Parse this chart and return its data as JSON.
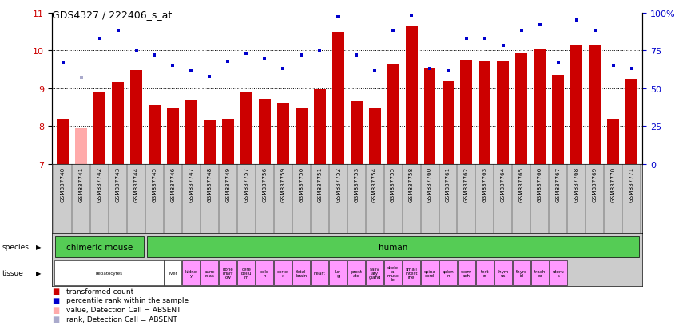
{
  "title": "GDS4327 / 222406_s_at",
  "samples": [
    "GSM837740",
    "GSM837741",
    "GSM837742",
    "GSM837743",
    "GSM837744",
    "GSM837745",
    "GSM837746",
    "GSM837747",
    "GSM837748",
    "GSM837749",
    "GSM837757",
    "GSM837756",
    "GSM837759",
    "GSM837750",
    "GSM837751",
    "GSM837752",
    "GSM837753",
    "GSM837754",
    "GSM837755",
    "GSM837758",
    "GSM837760",
    "GSM837761",
    "GSM837762",
    "GSM837763",
    "GSM837764",
    "GSM837765",
    "GSM837766",
    "GSM837767",
    "GSM837768",
    "GSM837769",
    "GSM837770",
    "GSM837771"
  ],
  "bar_values": [
    8.18,
    7.95,
    8.88,
    9.17,
    9.47,
    8.55,
    8.47,
    8.68,
    8.15,
    8.18,
    8.88,
    8.72,
    8.62,
    8.47,
    8.98,
    10.48,
    8.65,
    8.48,
    9.65,
    10.63,
    9.55,
    9.18,
    9.76,
    9.72,
    9.72,
    9.95,
    10.02,
    9.35,
    10.12,
    10.12,
    8.18,
    9.25
  ],
  "rank_values_pct": [
    67,
    57,
    83,
    88,
    75,
    72,
    65,
    62,
    58,
    68,
    73,
    70,
    63,
    72,
    75,
    97,
    72,
    62,
    88,
    98,
    63,
    62,
    83,
    83,
    78,
    88,
    92,
    67,
    95,
    88,
    65,
    63
  ],
  "absent_bar": [
    false,
    true,
    false,
    false,
    false,
    false,
    false,
    false,
    false,
    false,
    false,
    false,
    false,
    false,
    false,
    false,
    false,
    false,
    false,
    false,
    false,
    false,
    false,
    false,
    false,
    false,
    false,
    false,
    false,
    false,
    false,
    false
  ],
  "absent_rank": [
    false,
    true,
    false,
    false,
    false,
    false,
    false,
    false,
    false,
    false,
    false,
    false,
    false,
    false,
    false,
    false,
    false,
    false,
    false,
    false,
    false,
    false,
    false,
    false,
    false,
    false,
    false,
    false,
    false,
    false,
    false,
    false
  ],
  "species_groups": [
    {
      "label": "chimeric mouse",
      "start": 0,
      "end": 5
    },
    {
      "label": "human",
      "start": 5,
      "end": 32
    }
  ],
  "tissue_groups": [
    {
      "label": "hepatocytes",
      "start": 0,
      "end": 6,
      "color": "#ffffff"
    },
    {
      "label": "liver",
      "start": 6,
      "end": 7,
      "color": "#ffffff"
    },
    {
      "label": "kidne\ny",
      "start": 7,
      "end": 8,
      "color": "#ff99ff"
    },
    {
      "label": "panc\nreas",
      "start": 8,
      "end": 9,
      "color": "#ff99ff"
    },
    {
      "label": "bone\nmarr\now",
      "start": 9,
      "end": 10,
      "color": "#ff99ff"
    },
    {
      "label": "cere\nbellu\nm",
      "start": 10,
      "end": 11,
      "color": "#ff99ff"
    },
    {
      "label": "colo\nn",
      "start": 11,
      "end": 12,
      "color": "#ff99ff"
    },
    {
      "label": "corte\nx",
      "start": 12,
      "end": 13,
      "color": "#ff99ff"
    },
    {
      "label": "fetal\nbrain",
      "start": 13,
      "end": 14,
      "color": "#ff99ff"
    },
    {
      "label": "heart",
      "start": 14,
      "end": 15,
      "color": "#ff99ff"
    },
    {
      "label": "lun\ng",
      "start": 15,
      "end": 16,
      "color": "#ff99ff"
    },
    {
      "label": "prost\nate",
      "start": 16,
      "end": 17,
      "color": "#ff99ff"
    },
    {
      "label": "saliv\nary\ngland",
      "start": 17,
      "end": 18,
      "color": "#ff99ff"
    },
    {
      "label": "skele\ntal\nmusc\nle",
      "start": 18,
      "end": 19,
      "color": "#ff99ff"
    },
    {
      "label": "small\nintest\nine",
      "start": 19,
      "end": 20,
      "color": "#ff99ff"
    },
    {
      "label": "spina\ncord",
      "start": 20,
      "end": 21,
      "color": "#ff99ff"
    },
    {
      "label": "splen\nn",
      "start": 21,
      "end": 22,
      "color": "#ff99ff"
    },
    {
      "label": "stom\nach",
      "start": 22,
      "end": 23,
      "color": "#ff99ff"
    },
    {
      "label": "test\nes",
      "start": 23,
      "end": 24,
      "color": "#ff99ff"
    },
    {
      "label": "thym\nus",
      "start": 24,
      "end": 25,
      "color": "#ff99ff"
    },
    {
      "label": "thyro\nid",
      "start": 25,
      "end": 26,
      "color": "#ff99ff"
    },
    {
      "label": "trach\nea",
      "start": 26,
      "end": 27,
      "color": "#ff99ff"
    },
    {
      "label": "uteru\ns",
      "start": 27,
      "end": 28,
      "color": "#ff99ff"
    }
  ],
  "ylim_left": [
    7,
    11
  ],
  "ylim_right": [
    0,
    100
  ],
  "yticks_left": [
    7,
    8,
    9,
    10,
    11
  ],
  "yticks_right": [
    0,
    25,
    50,
    75,
    100
  ],
  "bar_color": "#cc0000",
  "bar_absent_color": "#ffaaaa",
  "rank_color": "#0000cc",
  "rank_absent_color": "#aaaacc",
  "bg_color": "#ffffff",
  "species_color": "#55cc55",
  "legend_items": [
    {
      "color": "#cc0000",
      "label": "transformed count"
    },
    {
      "color": "#0000cc",
      "label": "percentile rank within the sample"
    },
    {
      "color": "#ffaaaa",
      "label": "value, Detection Call = ABSENT"
    },
    {
      "color": "#aaaacc",
      "label": "rank, Detection Call = ABSENT"
    }
  ]
}
